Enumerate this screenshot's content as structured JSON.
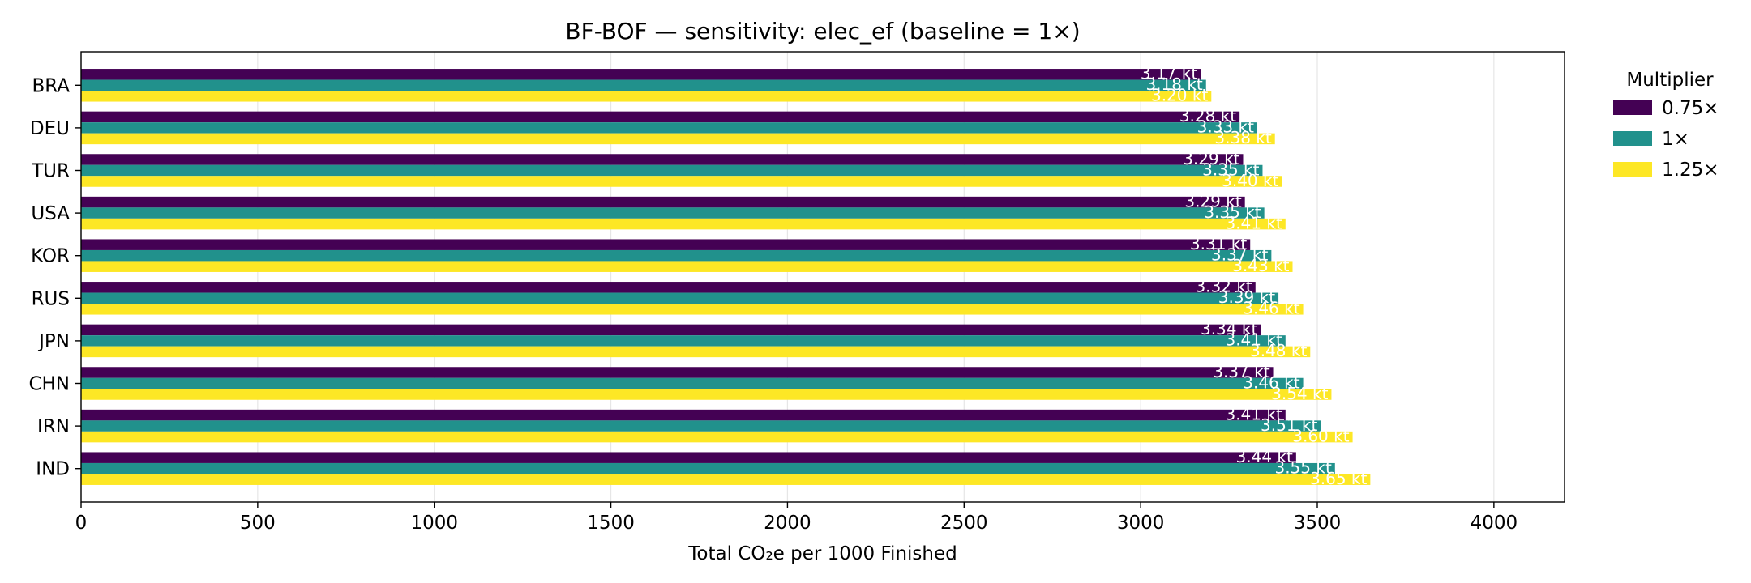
{
  "chart_data": {
    "type": "bar",
    "orientation": "horizontal",
    "title": "BF-BOF — sensitivity: elec_ef (baseline = 1×)",
    "xlabel": "Total CO₂e per 1000 Finished",
    "ylabel": "",
    "xlim": [
      0,
      4200
    ],
    "xticks": [
      "0",
      "500",
      "1000",
      "1500",
      "2000",
      "2500",
      "3000",
      "3500",
      "4000"
    ],
    "xtick_values": [
      0,
      500,
      1000,
      1500,
      2000,
      2500,
      3000,
      3500,
      4000
    ],
    "grid": "vertical",
    "categories": [
      "BRA",
      "DEU",
      "TUR",
      "USA",
      "KOR",
      "RUS",
      "JPN",
      "CHN",
      "IRN",
      "IND"
    ],
    "legend": {
      "title": "Multiplier",
      "placement": "outside-right"
    },
    "series": [
      {
        "name": "0.75×",
        "color": "#440154",
        "values": [
          3170,
          3280,
          3290,
          3295,
          3310,
          3325,
          3340,
          3375,
          3410,
          3440
        ],
        "labels": [
          "3.17 kt",
          "3.28 kt",
          "3.29 kt",
          "3.29 kt",
          "3.31 kt",
          "3.32 kt",
          "3.34 kt",
          "3.37 kt",
          "3.41 kt",
          "3.44 kt"
        ]
      },
      {
        "name": "1×",
        "color": "#21918c",
        "values": [
          3185,
          3330,
          3345,
          3350,
          3370,
          3390,
          3410,
          3460,
          3510,
          3550
        ],
        "labels": [
          "3.18 kt",
          "3.33 kt",
          "3.35 kt",
          "3.35 kt",
          "3.37 kt",
          "3.39 kt",
          "3.41 kt",
          "3.46 kt",
          "3.51 kt",
          "3.55 kt"
        ]
      },
      {
        "name": "1.25×",
        "color": "#fde725",
        "values": [
          3200,
          3380,
          3400,
          3410,
          3430,
          3460,
          3480,
          3540,
          3600,
          3650
        ],
        "labels": [
          "3.20 kt",
          "3.38 kt",
          "3.40 kt",
          "3.41 kt",
          "3.43 kt",
          "3.46 kt",
          "3.48 kt",
          "3.54 kt",
          "3.60 kt",
          "3.65 kt"
        ]
      }
    ]
  }
}
